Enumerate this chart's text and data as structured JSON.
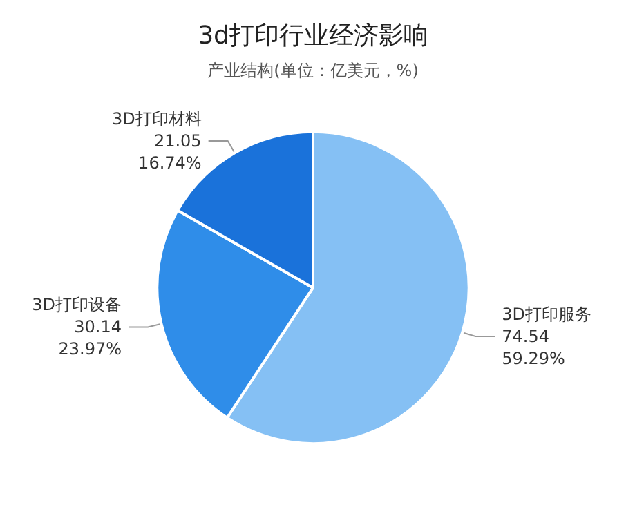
{
  "chart_data": {
    "type": "pie",
    "title": "3d打印行业经济影响",
    "subtitle": "产业结构(单位：亿美元，%)",
    "categories": [
      "3D打印服务",
      "3D打印设备",
      "3D打印材料"
    ],
    "values": [
      74.54,
      30.14,
      21.05
    ],
    "value_labels": [
      "74.54\n59.29%",
      "30.14\n23.97%",
      "21.05\n16.74%"
    ],
    "colors": [
      "#85c0f4",
      "#2f8de9",
      "#1a72da"
    ],
    "legend": false
  }
}
